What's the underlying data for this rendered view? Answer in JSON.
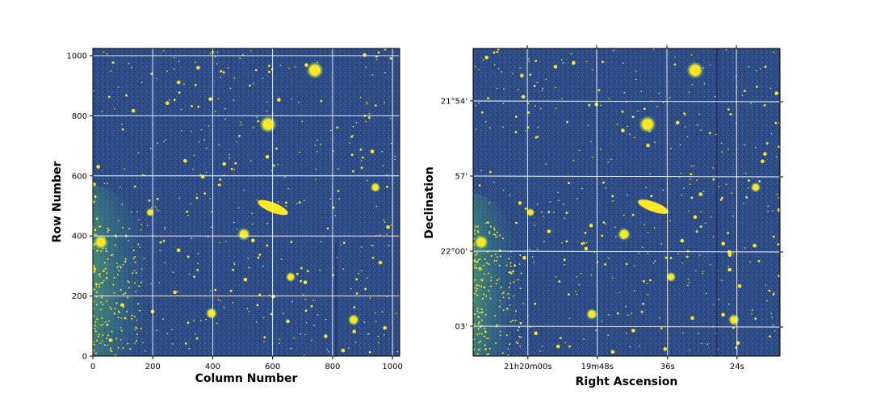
{
  "chart_data": [
    {
      "type": "heatmap",
      "xlabel": "Column Number",
      "ylabel": "Row Number",
      "xlim": [
        0,
        1024
      ],
      "ylim": [
        0,
        1024
      ],
      "xticks": [
        0,
        200,
        400,
        600,
        800,
        1000
      ],
      "yticks": [
        0,
        200,
        400,
        600,
        800,
        1000
      ],
      "xtick_labels": [
        "0",
        "200",
        "400",
        "600",
        "800",
        "1000"
      ],
      "ytick_labels": [
        "0",
        "200",
        "400",
        "600",
        "800",
        "1000"
      ],
      "grid": true,
      "colormap": "viridis"
    },
    {
      "type": "heatmap",
      "xlabel": "Right Ascension",
      "ylabel": "Declination",
      "grid": true,
      "colormap": "viridis",
      "xtick_labels": [
        "21h20m00s",
        "19m48s",
        "36s",
        "24s"
      ],
      "ytick_labels": [
        "21°54'",
        "57'",
        "22°00'",
        "03'"
      ]
    }
  ],
  "colors": {
    "background": "#2c4c86",
    "source": "#fde725",
    "grid": "#ffffff"
  }
}
